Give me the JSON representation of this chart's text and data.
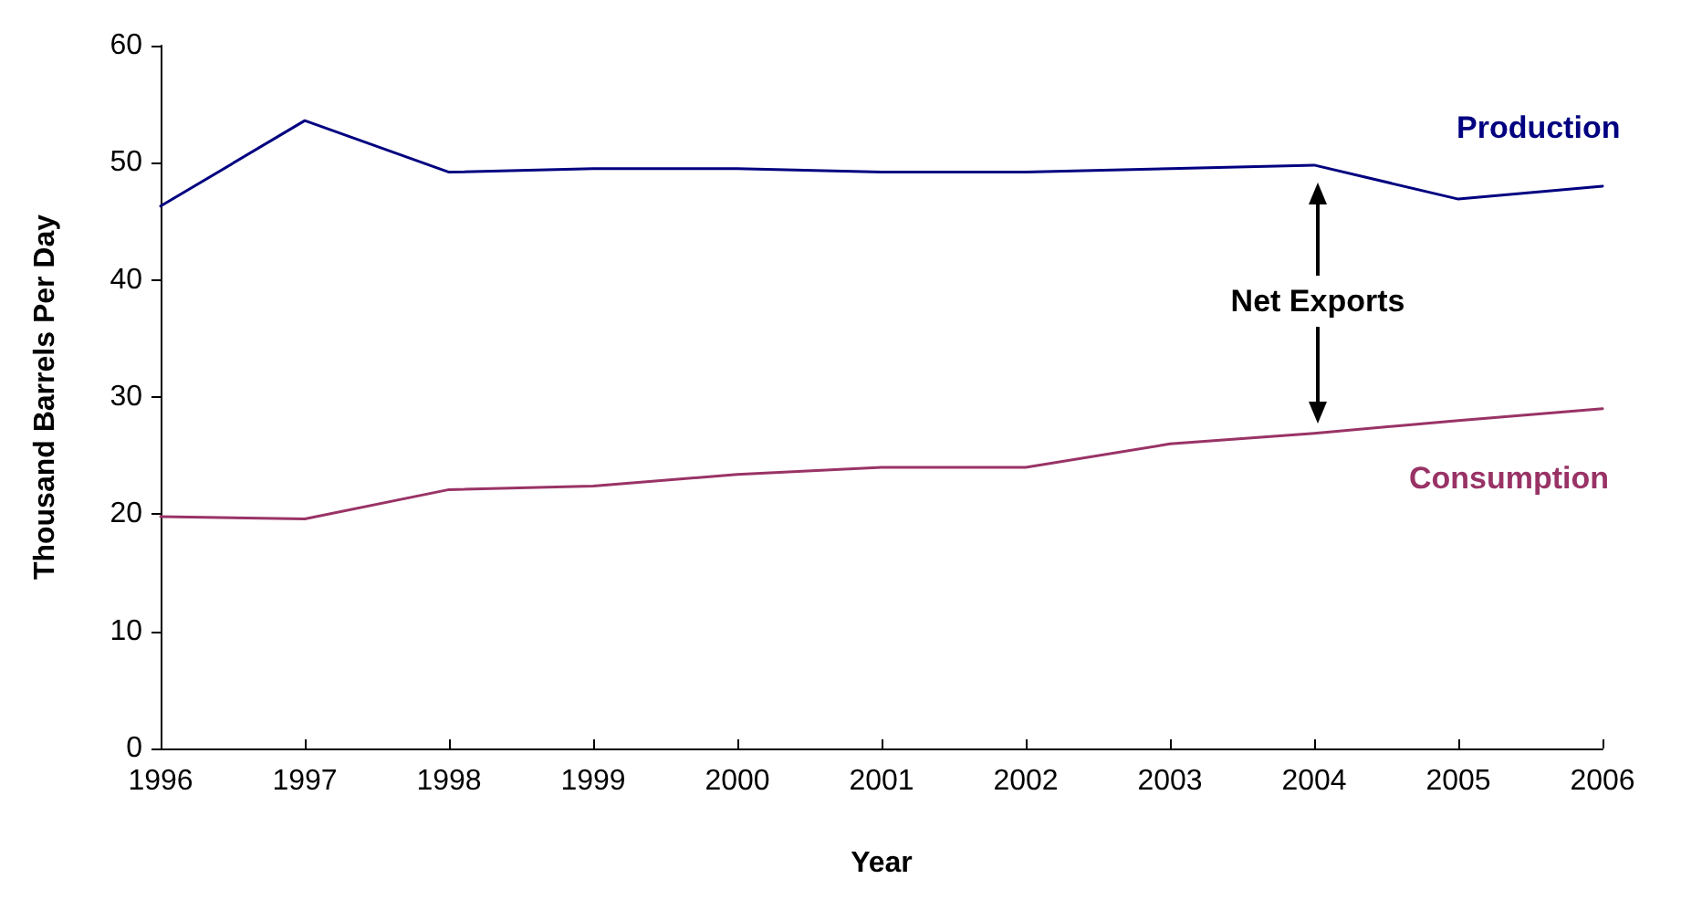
{
  "chart_data": {
    "type": "line",
    "xlabel": "Year",
    "ylabel": "Thousand Barrels Per Day",
    "x": [
      1996,
      1997,
      1998,
      1999,
      2000,
      2001,
      2002,
      2003,
      2004,
      2005,
      2006
    ],
    "series": [
      {
        "name": "Production",
        "color": "#000080",
        "values": [
          46.3,
          53.6,
          49.2,
          49.5,
          49.5,
          49.2,
          49.2,
          49.5,
          49.8,
          46.9,
          48.0
        ]
      },
      {
        "name": "Consumption",
        "color": "#993366",
        "values": [
          19.8,
          19.6,
          22.1,
          22.4,
          23.4,
          24.0,
          24.0,
          26.0,
          26.9,
          28.0,
          29.0
        ]
      }
    ],
    "xlim": [
      1996,
      2006
    ],
    "xticks": [
      1996,
      1997,
      1998,
      1999,
      2000,
      2001,
      2002,
      2003,
      2004,
      2005,
      2006
    ],
    "ylim": [
      0,
      60
    ],
    "yticks": [
      0,
      10,
      20,
      30,
      40,
      50,
      60
    ],
    "annotations": [
      "Net Exports"
    ],
    "grid": false,
    "legend": false,
    "marker": "none",
    "line_style": "solid"
  }
}
